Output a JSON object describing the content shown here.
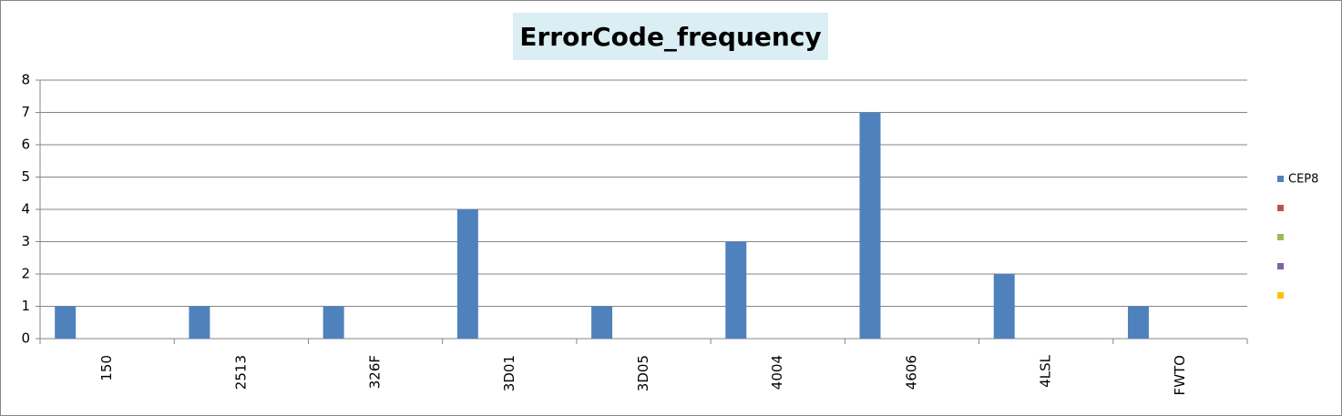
{
  "chart_data": {
    "type": "bar",
    "title": "ErrorCode_frequency",
    "categories": [
      "150",
      "2513",
      "326F",
      "3D01",
      "3D05",
      "4004",
      "4606",
      "4LSL",
      "FWTO"
    ],
    "series": [
      {
        "name": "CEP8",
        "color": "#4f81bd",
        "values": [
          1,
          1,
          1,
          4,
          1,
          3,
          7,
          2,
          1
        ]
      },
      {
        "color": "#c0504d",
        "values": [
          null,
          null,
          null,
          null,
          null,
          null,
          null,
          null,
          null
        ]
      },
      {
        "color": "#9bbb59",
        "values": [
          null,
          null,
          null,
          null,
          null,
          null,
          null,
          null,
          null
        ]
      },
      {
        "color": "#8064a2",
        "values": [
          null,
          null,
          null,
          null,
          null,
          null,
          null,
          null,
          null
        ]
      },
      {
        "color": "#ffc000",
        "values": [
          null,
          null,
          null,
          null,
          null,
          null,
          null,
          null,
          null
        ]
      }
    ],
    "ylim": [
      0,
      8
    ],
    "yticks": [
      0,
      1,
      2,
      3,
      4,
      5,
      6,
      7,
      8
    ],
    "grid": true,
    "legend": "right"
  }
}
